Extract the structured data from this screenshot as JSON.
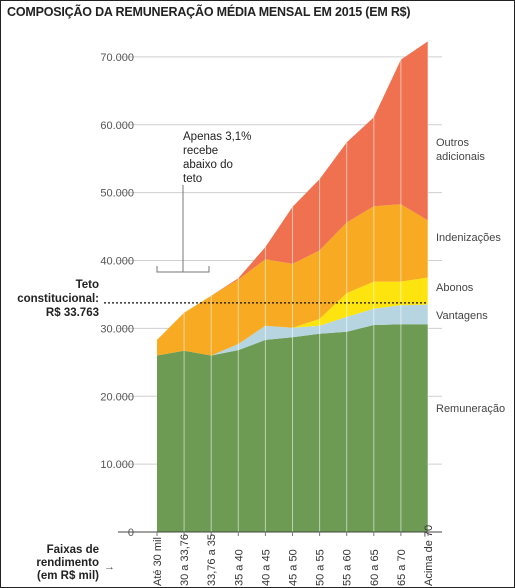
{
  "title": "COMPOSIÇÃO DA REMUNERAÇÃO MÉDIA MENSAL EM 2015 (EM R$)",
  "chart_data": {
    "type": "area",
    "stacked": true,
    "categories": [
      "Até 30 mil",
      "30 a 33,76",
      "33,76 a 35",
      "35 a 40",
      "40 a 45",
      "45 a 50",
      "50 a 55",
      "55 a 60",
      "60 a 65",
      "65 a 70",
      "Acima de 70"
    ],
    "series": [
      {
        "name": "Remuneração",
        "color": "#6d9b54",
        "values": [
          26000,
          26700,
          26000,
          26800,
          28300,
          28700,
          29200,
          29500,
          30500,
          30600,
          30600
        ]
      },
      {
        "name": "Vantagens",
        "color": "#b6d5e1",
        "values": [
          0,
          0,
          0,
          900,
          2100,
          1400,
          1200,
          2200,
          2400,
          2800,
          2900
        ]
      },
      {
        "name": "Abonos",
        "color": "#fde40e",
        "values": [
          0,
          0,
          0,
          0,
          0,
          0,
          1000,
          3500,
          4000,
          3500,
          4000
        ]
      },
      {
        "name": "Indenizações",
        "color": "#f8aa22",
        "values": [
          2300,
          5600,
          8800,
          9500,
          9800,
          9400,
          10100,
          10400,
          11100,
          11400,
          8400
        ]
      },
      {
        "name": "Outros adicionais",
        "color": "#ef7150",
        "values": [
          0,
          0,
          0,
          200,
          1800,
          8400,
          10500,
          11800,
          13100,
          21300,
          26400
        ]
      }
    ],
    "ylim": [
      0,
      75000
    ],
    "yticks": [
      "0",
      "10.000",
      "20.000",
      "30.000",
      "40.000",
      "50.000",
      "60.000",
      "70.000"
    ],
    "legend_placement": "right",
    "grid": true,
    "reference_line": {
      "value": 33763,
      "label_lines": [
        "Teto",
        "constitucional:",
        "R$ 33.763"
      ]
    },
    "annotation": {
      "lines": [
        "Apenas 3,1%",
        "recebe",
        "abaixo do",
        "teto"
      ]
    },
    "xlabel_lines": [
      "Faixas de",
      "rendimento",
      "(em R$ mil) →"
    ],
    "legend_labels": [
      [
        "Outros",
        "adicionais"
      ],
      [
        "Indenizações"
      ],
      [
        "Abonos"
      ],
      [
        "Vantagens"
      ],
      [
        "Remuneração"
      ]
    ]
  }
}
